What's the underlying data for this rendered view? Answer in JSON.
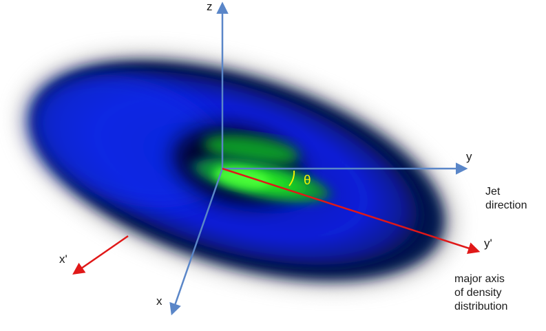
{
  "labels": {
    "z": "z",
    "y": "y",
    "x": "x",
    "x_prime": "x'",
    "y_prime": "y'",
    "theta": "θ",
    "jet_line1": "Jet",
    "jet_line2": "direction",
    "major_line1": "major axis",
    "major_line2": "of density",
    "major_line3": "distribution"
  },
  "colors": {
    "background": "#ffffff",
    "disk_blue": "#0a1fd0",
    "disk_dark": "#000a3a",
    "disk_green": "#18e020",
    "axis_blue": "#5a86c8",
    "axis_red": "#e01818",
    "theta": "#f2f200"
  }
}
